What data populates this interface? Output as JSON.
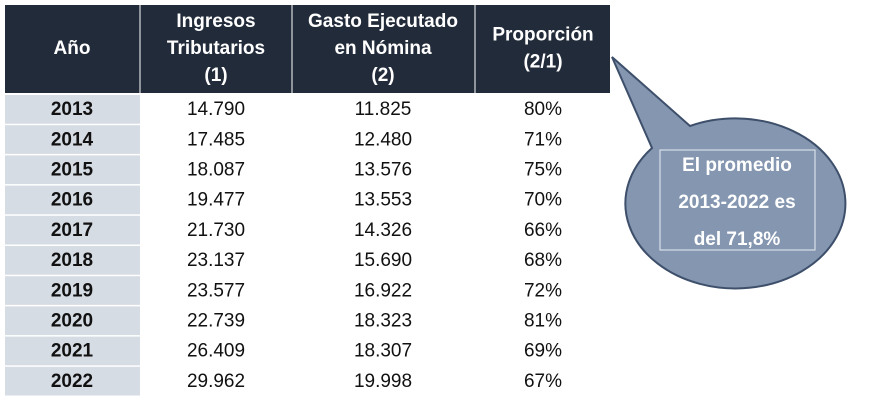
{
  "table": {
    "header": [
      [
        "Año"
      ],
      [
        "Ingresos",
        "Tributarios",
        "(1)"
      ],
      [
        "Gasto Ejecutado",
        "en Nómina",
        "(2)"
      ],
      [
        "Proporción",
        "(2/1)"
      ]
    ],
    "rows": [
      [
        "2013",
        "14.790",
        "11.825",
        "80%"
      ],
      [
        "2014",
        "17.485",
        "12.480",
        "71%"
      ],
      [
        "2015",
        "18.087",
        "13.576",
        "75%"
      ],
      [
        "2016",
        "19.477",
        "13.553",
        "70%"
      ],
      [
        "2017",
        "21.730",
        "14.326",
        "66%"
      ],
      [
        "2018",
        "23.137",
        "15.690",
        "68%"
      ],
      [
        "2019",
        "23.577",
        "16.922",
        "72%"
      ],
      [
        "2020",
        "22.739",
        "18.323",
        "81%"
      ],
      [
        "2021",
        "26.409",
        "18.307",
        "69%"
      ],
      [
        "2022",
        "29.962",
        "19.998",
        "67%"
      ]
    ]
  },
  "callout": {
    "lines": [
      "El promedio",
      "2013-2022 es",
      "del 71,8%"
    ]
  }
}
